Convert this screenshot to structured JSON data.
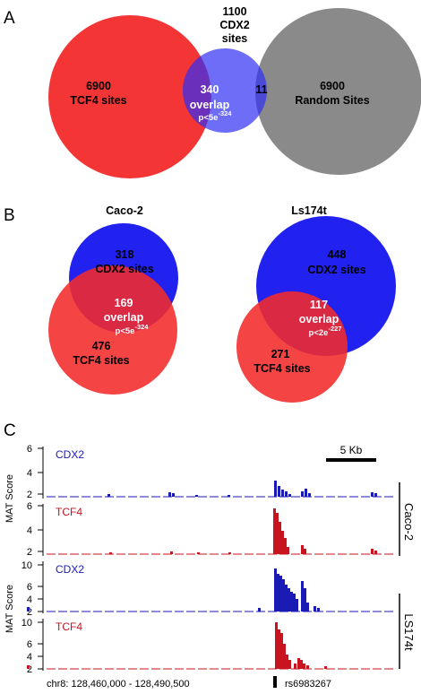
{
  "panels": [
    "A",
    "B",
    "C"
  ],
  "panel_a": {
    "tcf4": {
      "count": "6900",
      "label": "TCF4 sites"
    },
    "cdx2": {
      "count": "1100",
      "label1": "CDX2",
      "label2": "sites"
    },
    "random": {
      "count": "6900",
      "label": "Random Sites"
    },
    "overlap": {
      "count": "340",
      "label": "overlap",
      "pvalue": "p<5e",
      "pexp": "-324"
    },
    "cdx2_random_overlap": "11",
    "colors": {
      "tcf4": "#f22a2a",
      "cdx2": "#2f2ff5",
      "random": "#8a8a8a"
    }
  },
  "panel_b": {
    "caco2": {
      "title": "Caco-2",
      "cdx2": {
        "count": "318",
        "label": "CDX2 sites"
      },
      "overlap": {
        "count": "169",
        "label": "overlap",
        "pvalue": "p<5e",
        "pexp": "-324"
      },
      "tcf4": {
        "count": "476",
        "label": "TCF4 sites"
      }
    },
    "ls174t": {
      "title": "Ls174t",
      "cdx2": {
        "count": "448",
        "label": "CDX2 sites"
      },
      "overlap": {
        "count": "117",
        "label": "overlap",
        "pvalue": "p<2e",
        "pexp": "-227"
      },
      "tcf4": {
        "count": "271",
        "label": "TCF4 sites"
      }
    }
  },
  "panel_c": {
    "scale_bar": "5 Kb",
    "y_axis_title": "MAT Score",
    "group_caco2": "Caco-2",
    "group_ls174t": "LS174t",
    "coordinates": "chr8: 128,460,000 - 128,490,500",
    "snp": "rs6983267",
    "tracks": [
      {
        "name": "CDX2",
        "color": "#1a1ab4",
        "ticks": [
          "6",
          "4",
          "2"
        ]
      },
      {
        "name": "TCF4",
        "color": "#c8141e",
        "ticks": [
          "6",
          "4",
          "2"
        ]
      },
      {
        "name": "CDX2",
        "color": "#1a1ab4",
        "ticks": [
          "10",
          "6",
          "4",
          "2"
        ]
      },
      {
        "name": "TCF4",
        "color": "#c8141e",
        "ticks": [
          "10",
          "6",
          "4",
          "2"
        ]
      }
    ]
  }
}
